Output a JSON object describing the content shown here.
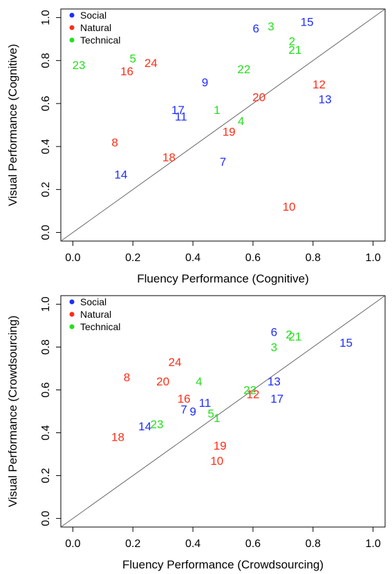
{
  "colors": {
    "Social": "#1f2cff",
    "Natural": "#ff2d16",
    "Technical": "#22e01a"
  },
  "chart_data": [
    {
      "type": "scatter",
      "xlabel": "Fluency Performance (Cognitive)",
      "ylabel": "Visual Performance (Cognitive)",
      "xlim": [
        0,
        1
      ],
      "ylim": [
        0,
        1
      ],
      "xticks": [
        "0.0",
        "0.2",
        "0.4",
        "0.6",
        "0.8",
        "1.0"
      ],
      "yticks": [
        "0.0",
        "0.2",
        "0.4",
        "0.6",
        "0.8",
        "1.0"
      ],
      "reference_line": "y = x",
      "grid": false,
      "legend": {
        "position": "top-left",
        "entries": [
          "Social",
          "Natural",
          "Technical"
        ]
      },
      "points": [
        {
          "label": "1",
          "group": "Technical",
          "x": 0.48,
          "y": 0.57
        },
        {
          "label": "2",
          "group": "Technical",
          "x": 0.73,
          "y": 0.89
        },
        {
          "label": "3",
          "group": "Technical",
          "x": 0.66,
          "y": 0.96
        },
        {
          "label": "4",
          "group": "Technical",
          "x": 0.56,
          "y": 0.52
        },
        {
          "label": "5",
          "group": "Technical",
          "x": 0.2,
          "y": 0.81
        },
        {
          "label": "6",
          "group": "Social",
          "x": 0.61,
          "y": 0.95
        },
        {
          "label": "7",
          "group": "Social",
          "x": 0.5,
          "y": 0.33
        },
        {
          "label": "8",
          "group": "Natural",
          "x": 0.14,
          "y": 0.42
        },
        {
          "label": "9",
          "group": "Social",
          "x": 0.44,
          "y": 0.7
        },
        {
          "label": "10",
          "group": "Natural",
          "x": 0.72,
          "y": 0.12
        },
        {
          "label": "11",
          "group": "Social",
          "x": 0.36,
          "y": 0.54
        },
        {
          "label": "12",
          "group": "Natural",
          "x": 0.82,
          "y": 0.69
        },
        {
          "label": "13",
          "group": "Social",
          "x": 0.84,
          "y": 0.62
        },
        {
          "label": "14",
          "group": "Social",
          "x": 0.16,
          "y": 0.27
        },
        {
          "label": "15",
          "group": "Social",
          "x": 0.78,
          "y": 0.98
        },
        {
          "label": "16",
          "group": "Natural",
          "x": 0.18,
          "y": 0.75
        },
        {
          "label": "17",
          "group": "Social",
          "x": 0.35,
          "y": 0.57
        },
        {
          "label": "18",
          "group": "Natural",
          "x": 0.32,
          "y": 0.35
        },
        {
          "label": "19",
          "group": "Natural",
          "x": 0.52,
          "y": 0.47
        },
        {
          "label": "20",
          "group": "Natural",
          "x": 0.62,
          "y": 0.63
        },
        {
          "label": "21",
          "group": "Technical",
          "x": 0.74,
          "y": 0.85
        },
        {
          "label": "22",
          "group": "Technical",
          "x": 0.57,
          "y": 0.76
        },
        {
          "label": "23",
          "group": "Technical",
          "x": 0.02,
          "y": 0.78
        },
        {
          "label": "24",
          "group": "Natural",
          "x": 0.26,
          "y": 0.79
        }
      ]
    },
    {
      "type": "scatter",
      "xlabel": "Fluency Performance (Crowdsourcing)",
      "ylabel": "Visual Performance (Crowdsourcing)",
      "xlim": [
        0,
        1
      ],
      "ylim": [
        0,
        1
      ],
      "xticks": [
        "0.0",
        "0.2",
        "0.4",
        "0.6",
        "0.8",
        "1.0"
      ],
      "yticks": [
        "0.0",
        "0.2",
        "0.4",
        "0.6",
        "0.8",
        "1.0"
      ],
      "reference_line": "y = x",
      "grid": false,
      "legend": {
        "position": "top-left",
        "entries": [
          "Social",
          "Natural",
          "Technical"
        ]
      },
      "points": [
        {
          "label": "1",
          "group": "Technical",
          "x": 0.48,
          "y": 0.47
        },
        {
          "label": "2",
          "group": "Technical",
          "x": 0.72,
          "y": 0.86
        },
        {
          "label": "3",
          "group": "Technical",
          "x": 0.67,
          "y": 0.8
        },
        {
          "label": "4",
          "group": "Technical",
          "x": 0.42,
          "y": 0.64
        },
        {
          "label": "5",
          "group": "Technical",
          "x": 0.46,
          "y": 0.49
        },
        {
          "label": "6",
          "group": "Social",
          "x": 0.67,
          "y": 0.87
        },
        {
          "label": "7",
          "group": "Social",
          "x": 0.37,
          "y": 0.51
        },
        {
          "label": "8",
          "group": "Natural",
          "x": 0.18,
          "y": 0.66
        },
        {
          "label": "9",
          "group": "Social",
          "x": 0.4,
          "y": 0.5
        },
        {
          "label": "10",
          "group": "Natural",
          "x": 0.48,
          "y": 0.27
        },
        {
          "label": "11",
          "group": "Social",
          "x": 0.44,
          "y": 0.54
        },
        {
          "label": "12",
          "group": "Natural",
          "x": 0.6,
          "y": 0.58
        },
        {
          "label": "13",
          "group": "Social",
          "x": 0.67,
          "y": 0.64
        },
        {
          "label": "14",
          "group": "Social",
          "x": 0.24,
          "y": 0.43
        },
        {
          "label": "15",
          "group": "Social",
          "x": 0.91,
          "y": 0.82
        },
        {
          "label": "16",
          "group": "Natural",
          "x": 0.37,
          "y": 0.56
        },
        {
          "label": "17",
          "group": "Social",
          "x": 0.68,
          "y": 0.56
        },
        {
          "label": "18",
          "group": "Natural",
          "x": 0.15,
          "y": 0.38
        },
        {
          "label": "19",
          "group": "Natural",
          "x": 0.49,
          "y": 0.34
        },
        {
          "label": "20",
          "group": "Natural",
          "x": 0.3,
          "y": 0.64
        },
        {
          "label": "21",
          "group": "Technical",
          "x": 0.74,
          "y": 0.85
        },
        {
          "label": "22",
          "group": "Technical",
          "x": 0.59,
          "y": 0.6
        },
        {
          "label": "23",
          "group": "Technical",
          "x": 0.28,
          "y": 0.44
        },
        {
          "label": "24",
          "group": "Natural",
          "x": 0.34,
          "y": 0.73
        }
      ]
    }
  ]
}
